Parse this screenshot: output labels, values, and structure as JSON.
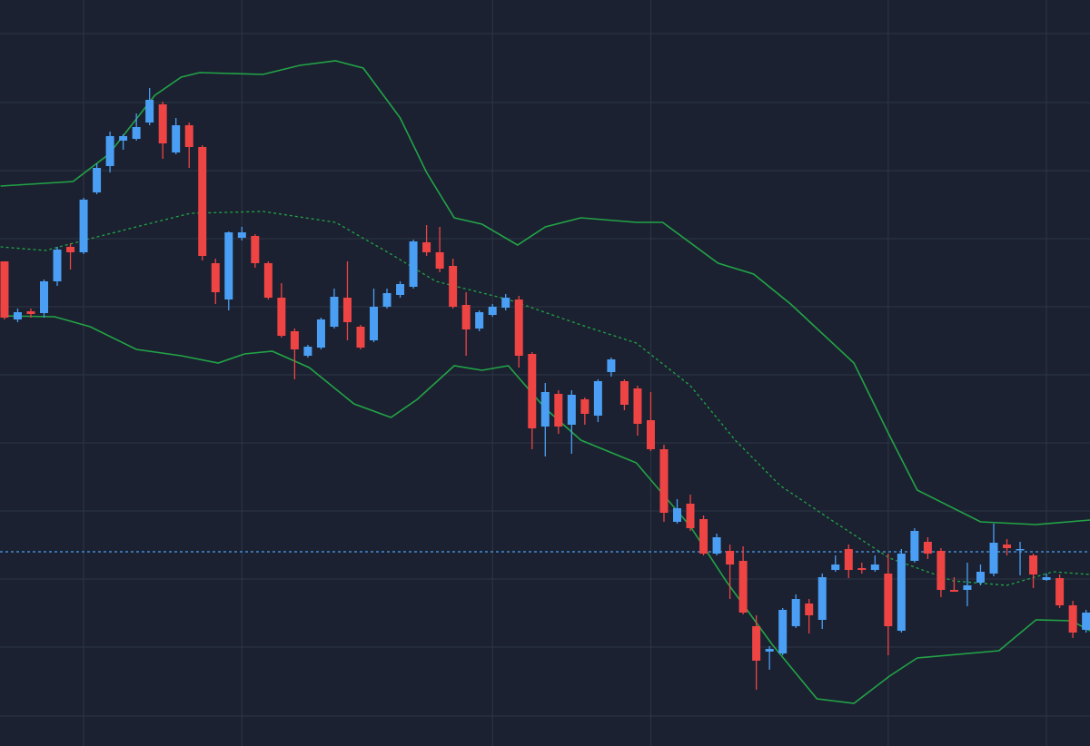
{
  "chart_data": {
    "type": "candlestick",
    "categories": [
      null,
      null,
      null,
      null,
      null,
      null,
      null,
      null,
      null,
      null,
      null,
      null,
      null,
      null,
      null,
      null,
      null,
      null,
      null,
      null,
      null,
      null,
      null,
      null,
      null,
      null,
      null,
      null,
      null,
      null,
      null,
      null,
      null,
      null,
      null,
      null,
      null,
      null,
      null,
      null,
      null,
      null,
      null,
      null,
      null,
      null,
      null,
      null,
      null,
      null,
      null,
      null,
      null,
      null,
      null,
      null,
      null,
      null,
      null,
      null,
      null,
      null,
      null,
      null,
      null,
      null,
      null,
      null,
      null,
      null,
      null,
      null,
      null,
      null,
      null,
      null,
      null,
      null,
      null,
      null,
      null,
      null,
      null
    ],
    "open": [
      534,
      470,
      479,
      477,
      512,
      550,
      544,
      610,
      639,
      667,
      669,
      687,
      707,
      654,
      684,
      660,
      532,
      492,
      560,
      562,
      532,
      494,
      457,
      430,
      439,
      462,
      494,
      462,
      447,
      484,
      497,
      506,
      555,
      544,
      529,
      486,
      460,
      475,
      483,
      492,
      432,
      352,
      388,
      354,
      382,
      364,
      412,
      402,
      394,
      359,
      327,
      247,
      267,
      250,
      212,
      215,
      204,
      132,
      104,
      102,
      132,
      157,
      139,
      194,
      217,
      196,
      194,
      190,
      127,
      204,
      225,
      215,
      172,
      172,
      180,
      190,
      222,
      216,
      210,
      183,
      185,
      155,
      128
    ],
    "high": [
      534,
      482,
      482,
      514,
      550,
      554,
      604,
      642,
      677,
      674,
      697,
      725,
      710,
      692,
      687,
      662,
      537,
      567,
      572,
      564,
      534,
      510,
      460,
      442,
      472,
      504,
      534,
      464,
      504,
      504,
      512,
      558,
      574,
      572,
      537,
      500,
      480,
      487,
      498,
      496,
      434,
      400,
      392,
      392,
      384,
      404,
      428,
      404,
      397,
      390,
      332,
      272,
      277,
      254,
      234,
      222,
      220,
      144,
      110,
      152,
      167,
      162,
      190,
      210,
      222,
      202,
      210,
      212,
      217,
      240,
      230,
      218,
      186,
      202,
      200,
      245,
      228,
      225,
      212,
      190,
      189,
      160,
      150
    ],
    "low": [
      470,
      467,
      472,
      472,
      507,
      525,
      542,
      608,
      632,
      657,
      667,
      684,
      647,
      652,
      637,
      535,
      487,
      480,
      557,
      527,
      492,
      450,
      404,
      428,
      437,
      460,
      447,
      437,
      445,
      482,
      494,
      504,
      540,
      522,
      482,
      430,
      457,
      473,
      480,
      417,
      327,
      319,
      344,
      322,
      354,
      357,
      407,
      370,
      342,
      325,
      247,
      245,
      237,
      210,
      210,
      162,
      145,
      62,
      84,
      100,
      130,
      124,
      129,
      192,
      185,
      190,
      192,
      100,
      125,
      202,
      206,
      164,
      170,
      154,
      177,
      187,
      210,
      188,
      174,
      182,
      152,
      119,
      125
    ],
    "close": [
      472,
      478,
      476,
      512,
      547,
      544,
      602,
      637,
      672,
      672,
      682,
      712,
      664,
      684,
      660,
      540,
      500,
      566,
      566,
      532,
      494,
      452,
      437,
      440,
      470,
      495,
      467,
      439,
      484,
      499,
      509,
      556,
      544,
      526,
      484,
      459,
      478,
      484,
      494,
      430,
      350,
      390,
      352,
      387,
      366,
      402,
      426,
      376,
      355,
      327,
      257,
      262,
      240,
      212,
      230,
      200,
      147,
      94,
      107,
      150,
      162,
      144,
      186,
      200,
      194,
      194,
      200,
      132,
      212,
      237,
      212,
      172,
      170,
      177,
      192,
      224,
      218,
      217,
      189,
      186,
      155,
      125,
      147
    ],
    "up_color": "#4a9ff5",
    "down_color": "#ef4444",
    "series": [
      {
        "color": "#22a447",
        "style": "solid",
        "x": [
          -0.3,
          5.2,
          7.9,
          11.4,
          13.4,
          14.8,
          19.6,
          22.4,
          25.1,
          27.2,
          30.0,
          32.0,
          34.1,
          36.2,
          38.9,
          41.0,
          43.7,
          47.9,
          49.9,
          54.1,
          56.8,
          59.6,
          64.4,
          67.1,
          69.2,
          74.0,
          78.2,
          82.3
        ],
        "values": [
          617,
          622,
          652,
          717,
          737,
          742,
          740,
          750,
          755,
          747,
          692,
          632,
          582,
          575,
          552,
          572,
          582,
          577,
          577,
          532,
          520,
          487,
          422,
          342,
          282,
          247,
          244,
          249
        ]
      },
      {
        "color": "#22a447",
        "style": "dashed",
        "x": [
          -0.3,
          3.1,
          6.5,
          10.0,
          14.1,
          19.6,
          25.1,
          29.3,
          32.7,
          38.2,
          43.7,
          47.9,
          52.0,
          55.4,
          58.8,
          62.9,
          67.1,
          71.9,
          76.0,
          79.5,
          82.3
        ],
        "values": [
          550,
          546,
          559,
          572,
          587,
          589,
          577,
          542,
          512,
          492,
          464,
          444,
          397,
          337,
          287,
          247,
          207,
          182,
          177,
          192,
          189
        ]
      },
      {
        "color": "#22a447",
        "style": "solid",
        "x": [
          -0.3,
          3.8,
          6.5,
          10.0,
          13.4,
          16.2,
          18.2,
          20.3,
          23.1,
          26.5,
          29.3,
          31.3,
          34.1,
          36.2,
          38.2,
          41.0,
          43.7,
          47.9,
          52.0,
          54.7,
          58.2,
          61.6,
          64.4,
          67.1,
          69.2,
          75.4,
          78.2,
          80.9,
          82.3
        ],
        "values": [
          474,
          473,
          462,
          437,
          430,
          422,
          432,
          435,
          417,
          377,
          362,
          382,
          419,
          414,
          419,
          372,
          337,
          312,
          242,
          182,
          112,
          52,
          47,
          77,
          97,
          105,
          139,
          138,
          127
        ]
      }
    ],
    "price_line": {
      "value": 214,
      "color": "#4a9ff5"
    },
    "xlim": [
      -0.34,
      82.3
    ],
    "xticks": [
      6,
      18,
      37,
      49,
      67,
      79
    ],
    "ylim": [
      0,
      822
    ],
    "yticks": [
      785,
      709,
      634,
      559,
      484,
      409,
      334,
      259,
      184,
      109,
      33
    ],
    "grid": true
  }
}
